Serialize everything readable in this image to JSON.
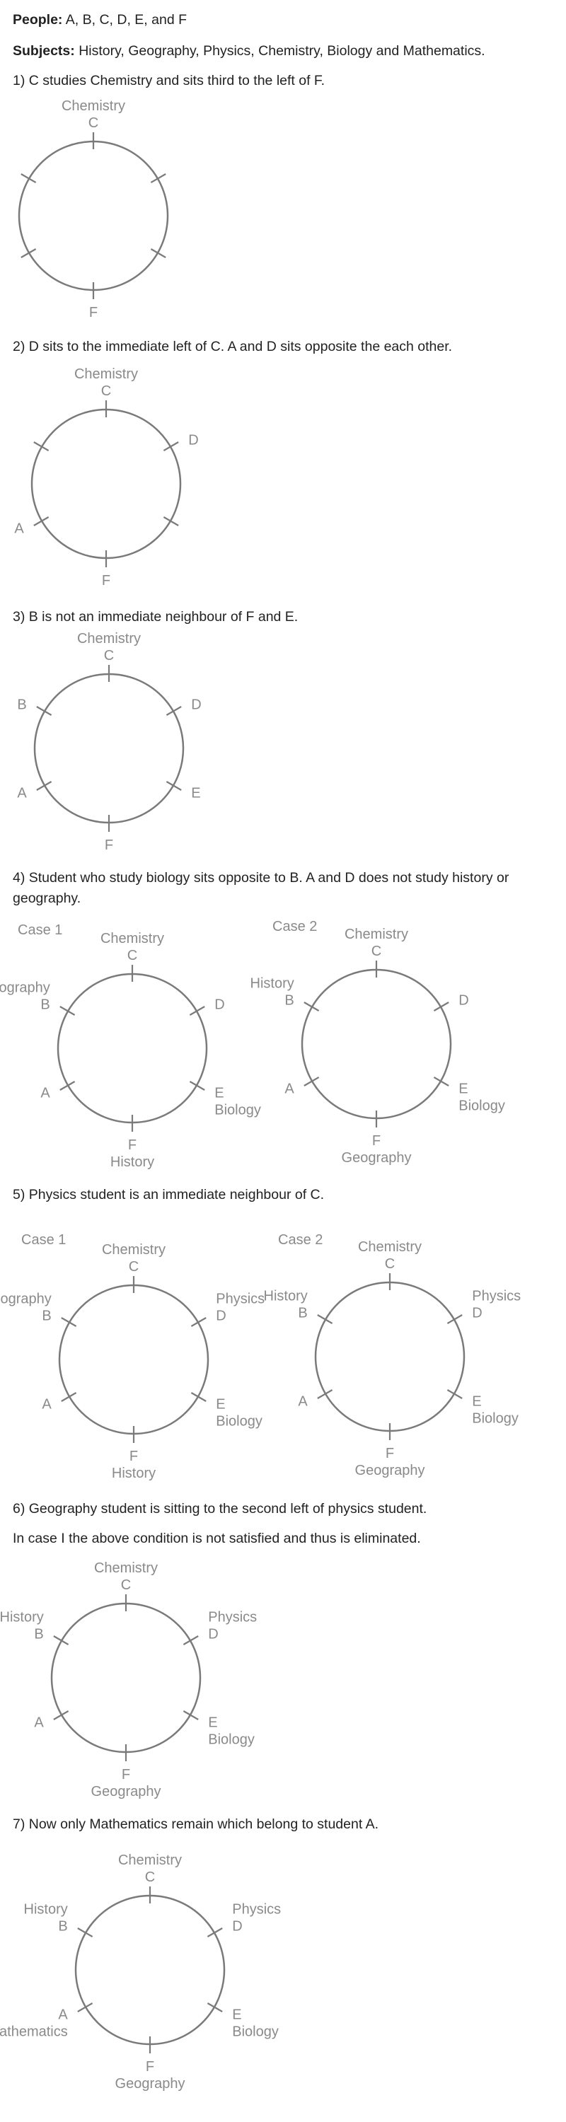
{
  "intro": {
    "people_label": "People:",
    "people_value": " A, B, C, D, E, and F",
    "subjects_label": "Subjects:",
    "subjects_value": " History, Geography, Physics, Chemistry, Biology and Mathematics."
  },
  "steps": [
    "1) C studies Chemistry and sits third to the left of F.",
    "2) D sits to the immediate left of C. A and D sits opposite the each other.",
    "3) B is not an immediate neighbour of F and E.",
    "4) Student who study biology sits opposite to B. A and D does not study history or geography.",
    "5) Physics student is an immediate neighbour of C.",
    "6) Geography student is sitting to the second left of physics student.",
    "In case I the above condition is not satisfied and thus is eliminated.",
    "7) Now only Mathematics remain which belong to student A."
  ],
  "cases": [
    "Case 1",
    "Case 2"
  ],
  "diagrams": [
    {
      "id": "step1",
      "case": null,
      "labels": {
        "top": [
          "Chemistry",
          "C"
        ],
        "topRight": [],
        "bottomRight": [],
        "bottom": [
          "F"
        ],
        "bottomLeft": [],
        "topLeft": []
      }
    },
    {
      "id": "step2",
      "case": null,
      "labels": {
        "top": [
          "Chemistry",
          "C"
        ],
        "topRight": [
          "D"
        ],
        "bottomRight": [],
        "bottom": [
          "F"
        ],
        "bottomLeft": [
          "A"
        ],
        "topLeft": []
      }
    },
    {
      "id": "step3",
      "case": null,
      "labels": {
        "top": [
          "Chemistry",
          "C"
        ],
        "topRight": [
          "D"
        ],
        "bottomRight": [
          "E"
        ],
        "bottom": [
          "F"
        ],
        "bottomLeft": [
          "A"
        ],
        "topLeft": [
          "B"
        ]
      }
    },
    {
      "id": "step4-case1",
      "case": 0,
      "labels": {
        "top": [
          "Chemistry",
          "C"
        ],
        "topRight": [
          "D"
        ],
        "bottomRight": [
          "E",
          "Biology"
        ],
        "bottom": [
          "F",
          "History"
        ],
        "bottomLeft": [
          "A"
        ],
        "topLeft": [
          "Geography",
          "B"
        ]
      }
    },
    {
      "id": "step4-case2",
      "case": 1,
      "labels": {
        "top": [
          "Chemistry",
          "C"
        ],
        "topRight": [
          "D"
        ],
        "bottomRight": [
          "E",
          "Biology"
        ],
        "bottom": [
          "F",
          "Geography"
        ],
        "bottomLeft": [
          "A"
        ],
        "topLeft": [
          "History",
          "B"
        ]
      }
    },
    {
      "id": "step5-case1",
      "case": 0,
      "labels": {
        "top": [
          "Chemistry",
          "C"
        ],
        "topRight": [
          "Physics",
          "D"
        ],
        "bottomRight": [
          "E",
          "Biology"
        ],
        "bottom": [
          "F",
          "History"
        ],
        "bottomLeft": [
          "A"
        ],
        "topLeft": [
          "Geography",
          "B"
        ]
      }
    },
    {
      "id": "step5-case2",
      "case": 1,
      "labels": {
        "top": [
          "Chemistry",
          "C"
        ],
        "topRight": [
          "Physics",
          "D"
        ],
        "bottomRight": [
          "E",
          "Biology"
        ],
        "bottom": [
          "F",
          "Geography"
        ],
        "bottomLeft": [
          "A"
        ],
        "topLeft": [
          "History",
          "B"
        ]
      }
    },
    {
      "id": "step6",
      "case": null,
      "labels": {
        "top": [
          "Chemistry",
          "C"
        ],
        "topRight": [
          "Physics",
          "D"
        ],
        "bottomRight": [
          "E",
          "Biology"
        ],
        "bottom": [
          "F",
          "Geography"
        ],
        "bottomLeft": [
          "A"
        ],
        "topLeft": [
          "History",
          "B"
        ]
      }
    },
    {
      "id": "step7",
      "case": null,
      "labels": {
        "top": [
          "Chemistry",
          "C"
        ],
        "topRight": [
          "Physics",
          "D"
        ],
        "bottomRight": [
          "E",
          "Biology"
        ],
        "bottom": [
          "F",
          "Geography"
        ],
        "bottomLeft": [
          "A",
          "Mathematics"
        ],
        "topLeft": [
          "History",
          "B"
        ]
      }
    }
  ]
}
